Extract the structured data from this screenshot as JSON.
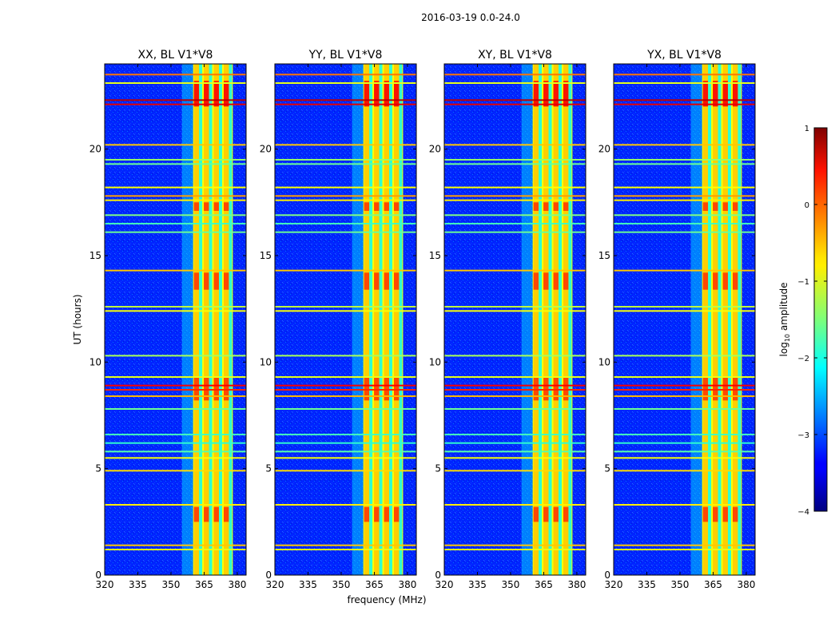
{
  "chart_data": {
    "type": "heatmap",
    "suptitle": "2016-03-19 0.0-24.0",
    "xlabel": "frequency (MHz)",
    "ylabel": "UT (hours)",
    "xlim": [
      320,
      384
    ],
    "ylim": [
      0,
      24
    ],
    "xticks": [
      320,
      335,
      350,
      365,
      380
    ],
    "yticks": [
      0,
      5,
      10,
      15,
      20
    ],
    "panels": [
      {
        "title": "XX, BL V1*V8",
        "key": "xx"
      },
      {
        "title": "YY, BL V1*V8",
        "key": "yy"
      },
      {
        "title": "XY, BL V1*V8",
        "key": "xy"
      },
      {
        "title": "YX, BL V1*V8",
        "key": "yx"
      }
    ],
    "colorbar": {
      "label_prefix": "log",
      "label_sub": "10",
      "label_suffix": " amplitude",
      "range": [
        -4,
        1
      ],
      "ticks": [
        1,
        0,
        -1,
        -2,
        -3,
        -4
      ],
      "tick_labels": [
        "1",
        "0",
        "−1",
        "−2",
        "−3",
        "−4"
      ]
    },
    "features": {
      "background_log_amp": -3.2,
      "signal_band_mhz": [
        360,
        378
      ],
      "band_edges_mhz": [
        360,
        364.5,
        369,
        373.5,
        378
      ],
      "rfi_rows": [
        {
          "ut": 23.5,
          "amp": -0.2
        },
        {
          "ut": 23.1,
          "amp": -1.0
        },
        {
          "ut": 22.3,
          "amp": 0.7
        },
        {
          "ut": 22.1,
          "amp": 0.5
        },
        {
          "ut": 20.2,
          "amp": -0.6
        },
        {
          "ut": 19.5,
          "amp": -1.4
        },
        {
          "ut": 19.3,
          "amp": -1.6
        },
        {
          "ut": 18.2,
          "amp": -0.9
        },
        {
          "ut": 17.8,
          "amp": -0.4
        },
        {
          "ut": 17.6,
          "amp": -0.8
        },
        {
          "ut": 16.9,
          "amp": -1.5
        },
        {
          "ut": 16.5,
          "amp": -1.8
        },
        {
          "ut": 16.1,
          "amp": -1.6
        },
        {
          "ut": 14.3,
          "amp": -0.6
        },
        {
          "ut": 12.6,
          "amp": -1.2
        },
        {
          "ut": 12.4,
          "amp": -0.9
        },
        {
          "ut": 10.3,
          "amp": -1.3
        },
        {
          "ut": 9.3,
          "amp": -1.0
        },
        {
          "ut": 8.9,
          "amp": 0.4
        },
        {
          "ut": 8.7,
          "amp": 0.2
        },
        {
          "ut": 8.4,
          "amp": -0.5
        },
        {
          "ut": 7.8,
          "amp": -1.6
        },
        {
          "ut": 6.6,
          "amp": -1.8
        },
        {
          "ut": 6.2,
          "amp": -1.9
        },
        {
          "ut": 5.8,
          "amp": -1.7
        },
        {
          "ut": 5.5,
          "amp": -0.9
        },
        {
          "ut": 4.9,
          "amp": -0.7
        },
        {
          "ut": 3.3,
          "amp": -0.8
        },
        {
          "ut": 1.4,
          "amp": -0.6
        },
        {
          "ut": 1.2,
          "amp": -1.0
        }
      ],
      "hot_bands_ut": [
        [
          22.0,
          23.2
        ],
        [
          17.1,
          17.5
        ],
        [
          13.4,
          14.2
        ],
        [
          8.2,
          9.3
        ],
        [
          2.5,
          3.2
        ]
      ]
    }
  }
}
